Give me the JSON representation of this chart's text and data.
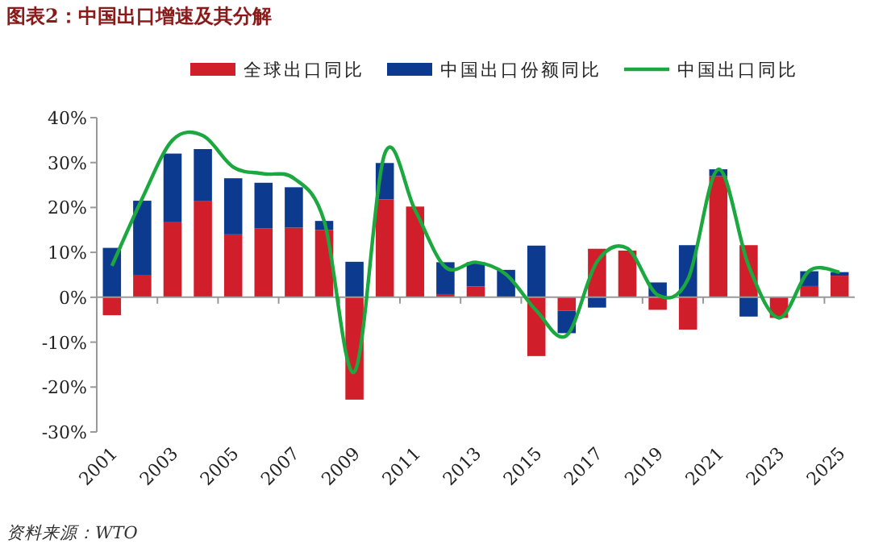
{
  "chart_data": {
    "type": "bar",
    "title": "图表2：中国出口增速及其分解",
    "stacked": true,
    "legend": "top",
    "categories": [
      "2001",
      null,
      "2003",
      null,
      "2005",
      null,
      "2007",
      null,
      "2009",
      null,
      "2011",
      null,
      "2013",
      null,
      "2015",
      null,
      "2017",
      null,
      "2019",
      null,
      "2021",
      null,
      "2023",
      null,
      "2025"
    ],
    "ylim": [
      -30,
      40
    ],
    "yticks": [
      {
        "value": -30,
        "label": "-30%"
      },
      {
        "value": -20,
        "label": "-20%"
      },
      {
        "value": -10,
        "label": "-10%"
      },
      {
        "value": 0,
        "label": "0%"
      },
      {
        "value": 10,
        "label": "10%"
      },
      {
        "value": 20,
        "label": "20%"
      },
      {
        "value": 30,
        "label": "30%"
      },
      {
        "value": 40,
        "label": "40%"
      }
    ],
    "series": [
      {
        "name": "全球出口同比",
        "type": "bar",
        "color": "#d01f2a",
        "values": [
          -4,
          5,
          16.7,
          21.5,
          14,
          15.3,
          15.5,
          15,
          -22.8,
          21.8,
          20.2,
          0.7,
          2.4,
          0,
          -13.1,
          -3,
          10.8,
          10.4,
          -2.8,
          -7.2,
          27,
          11.6,
          -4.6,
          2.5,
          4.8
        ]
      },
      {
        "name": "中国出口份额同比",
        "type": "bar",
        "color": "#0c3a8e",
        "values": [
          11,
          16.5,
          15.3,
          11.5,
          12.5,
          10.2,
          9,
          2,
          7.9,
          8.1,
          0,
          7.1,
          5.4,
          6.1,
          11.5,
          -5,
          -2.3,
          0,
          3.3,
          11.6,
          1.5,
          -4.3,
          0,
          3.3,
          0.8
        ]
      },
      {
        "name": "中国出口同比",
        "type": "line",
        "color": "#1aa83f",
        "values": [
          7,
          22,
          35,
          36,
          29,
          27.5,
          26.5,
          17,
          -16.6,
          32,
          19.4,
          6.7,
          7.8,
          5.1,
          -3,
          -8.5,
          7.9,
          10.9,
          0.5,
          4,
          28.5,
          7,
          -4.6,
          5.9,
          5.6
        ]
      }
    ],
    "annotations": [
      "资料来源：WTO"
    ]
  }
}
